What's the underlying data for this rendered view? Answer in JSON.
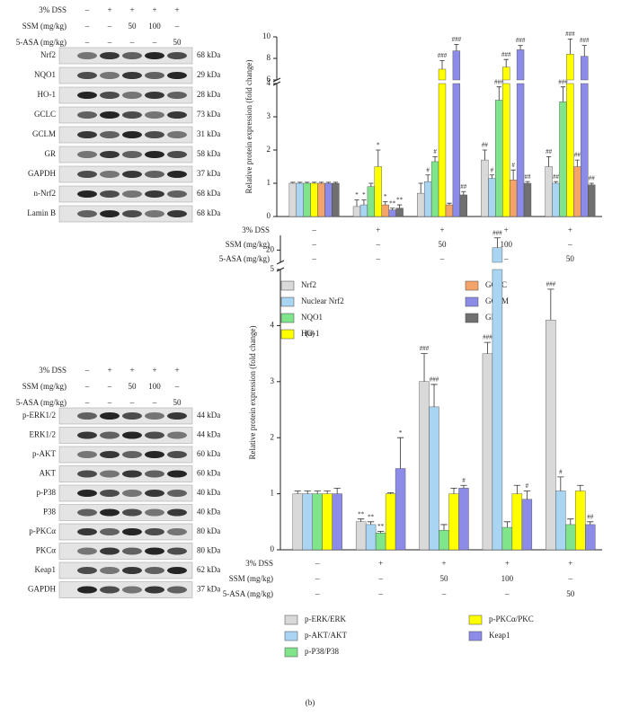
{
  "blots": [
    {
      "header_rows": [
        {
          "label": "3% DSS",
          "values": [
            "–",
            "+",
            "+",
            "+",
            "+"
          ]
        },
        {
          "label": "SSM (mg/kg)",
          "values": [
            "–",
            "–",
            "50",
            "100",
            "–"
          ]
        },
        {
          "label": "5-ASA (mg/kg)",
          "values": [
            "–",
            "–",
            "–",
            "–",
            "50"
          ]
        }
      ],
      "rows": [
        {
          "name": "Nrf2",
          "size": "68 kDa"
        },
        {
          "name": "NQO1",
          "size": "29 kDa"
        },
        {
          "name": "HO-1",
          "size": "28 kDa"
        },
        {
          "name": "GCLC",
          "size": "73 kDa"
        },
        {
          "name": "GCLM",
          "size": "31 kDa"
        },
        {
          "name": "GR",
          "size": "58 kDa"
        },
        {
          "name": "GAPDH",
          "size": "37 kDa"
        },
        {
          "name": "n-Nrf2",
          "size": "68 kDa"
        },
        {
          "name": "Lamin B",
          "size": "68 kDa"
        }
      ]
    },
    {
      "header_rows": [
        {
          "label": "3% DSS",
          "values": [
            "–",
            "+",
            "+",
            "+",
            "+"
          ]
        },
        {
          "label": "SSM (mg/kg)",
          "values": [
            "–",
            "–",
            "50",
            "100",
            "–"
          ]
        },
        {
          "label": "5-ASA (mg/kg)",
          "values": [
            "–",
            "–",
            "–",
            "–",
            "50"
          ]
        }
      ],
      "rows": [
        {
          "name": "p-ERK1/2",
          "size": "44 kDa"
        },
        {
          "name": "ERK1/2",
          "size": "44 kDa"
        },
        {
          "name": "p-AKT",
          "size": "60 kDa"
        },
        {
          "name": "AKT",
          "size": "60 kDa"
        },
        {
          "name": "p-P38",
          "size": "40 kDa"
        },
        {
          "name": "P38",
          "size": "40 kDa"
        },
        {
          "name": "p-PKCα",
          "size": "80 kDa"
        },
        {
          "name": "PKCα",
          "size": "80 kDa"
        },
        {
          "name": "Keap1",
          "size": "62 kDa"
        },
        {
          "name": "GAPDH",
          "size": "37 kDa"
        }
      ]
    }
  ],
  "chart_data": [
    {
      "type": "bar",
      "ylabel": "Relative protein expression (fold change)",
      "caption": "(a)",
      "ylim": [
        0,
        10
      ],
      "ybreak": [
        4,
        6
      ],
      "yticks": [
        0,
        1,
        2,
        3,
        4,
        6,
        8,
        10
      ],
      "conditions": [
        {
          "label": "3% DSS",
          "values": [
            "–",
            "+",
            "+",
            "+",
            "+"
          ]
        },
        {
          "label": "SSM (mg/kg)",
          "values": [
            "–",
            "–",
            "50",
            "100",
            "–"
          ]
        },
        {
          "label": "5-ASA (mg/kg)",
          "values": [
            "–",
            "–",
            "–",
            "–",
            "50"
          ]
        }
      ],
      "series": [
        {
          "name": "Nrf2",
          "color": "#d9d9d9",
          "values": [
            1,
            0.3,
            0.7,
            1.7,
            1.5
          ],
          "errors": [
            0.03,
            0.2,
            0.3,
            0.3,
            0.3
          ],
          "annotations": [
            null,
            "*",
            null,
            "##",
            "##"
          ]
        },
        {
          "name": "Nuclear Nrf2",
          "color": "#a9d5f3",
          "values": [
            1,
            0.35,
            1.05,
            1.15,
            1.0
          ],
          "errors": [
            0.03,
            0.15,
            0.2,
            0.1,
            0.05
          ],
          "annotations": [
            null,
            "*",
            "#",
            "#",
            "##"
          ]
        },
        {
          "name": "NQO1",
          "color": "#80e58a",
          "values": [
            1,
            0.9,
            1.65,
            3.5,
            3.45
          ],
          "errors": [
            0.03,
            0.1,
            0.15,
            0.4,
            0.45
          ],
          "annotations": [
            null,
            null,
            "#",
            "###",
            "###"
          ]
        },
        {
          "name": "HO-1",
          "color": "#ffff00",
          "values": [
            1,
            1.5,
            7.0,
            7.2,
            8.4
          ],
          "errors": [
            0.03,
            0.5,
            0.8,
            0.7,
            1.4
          ],
          "annotations": [
            null,
            "*",
            "###",
            "###",
            "###"
          ]
        },
        {
          "name": "GCLC",
          "color": "#f4a46a",
          "values": [
            1,
            0.35,
            0.35,
            1.1,
            1.5
          ],
          "errors": [
            0.03,
            0.1,
            0.05,
            0.3,
            0.2
          ],
          "annotations": [
            null,
            "*",
            null,
            "#",
            "##"
          ]
        },
        {
          "name": "GCLM",
          "color": "#8c8ce8",
          "values": [
            1,
            0.2,
            8.7,
            8.8,
            8.2
          ],
          "errors": [
            0.03,
            0.05,
            0.6,
            0.4,
            1.0
          ],
          "annotations": [
            null,
            "**",
            "###",
            "###",
            "###"
          ]
        },
        {
          "name": "GR",
          "color": "#707070",
          "values": [
            1,
            0.25,
            0.65,
            1.0,
            0.95
          ],
          "errors": [
            0.03,
            0.1,
            0.1,
            0.05,
            0.05
          ],
          "annotations": [
            null,
            "**",
            "##",
            "##",
            "##"
          ]
        }
      ]
    },
    {
      "type": "bar",
      "ylabel": "Relative protein expression (fold change)",
      "caption": "(b)",
      "ylim": [
        0,
        26
      ],
      "ybreak": [
        5,
        15
      ],
      "yticks": [
        0,
        1,
        2,
        3,
        4,
        5,
        20
      ],
      "conditions": [
        {
          "label": "3% DSS",
          "values": [
            "–",
            "+",
            "+",
            "+",
            "+"
          ]
        },
        {
          "label": "SSM (mg/kg)",
          "values": [
            "–",
            "–",
            "50",
            "100",
            "–"
          ]
        },
        {
          "label": "5-ASA (mg/kg)",
          "values": [
            "–",
            "–",
            "–",
            "–",
            "50"
          ]
        }
      ],
      "series": [
        {
          "name": "p-ERK/ERK",
          "color": "#d9d9d9",
          "values": [
            1,
            0.5,
            3.0,
            3.5,
            4.1
          ],
          "errors": [
            0.05,
            0.05,
            0.5,
            0.2,
            0.55
          ],
          "annotations": [
            null,
            "**",
            "###",
            "###",
            "###"
          ]
        },
        {
          "name": "p-AKT/AKT",
          "color": "#a9d5f3",
          "values": [
            1,
            0.45,
            2.55,
            21,
            1.05
          ],
          "errors": [
            0.05,
            0.05,
            0.4,
            4,
            0.25
          ],
          "annotations": [
            null,
            "**",
            "###",
            "###",
            "#"
          ]
        },
        {
          "name": "p-P38/P38",
          "color": "#80e58a",
          "values": [
            1,
            0.3,
            0.35,
            0.4,
            0.45
          ],
          "errors": [
            0.05,
            0.03,
            0.1,
            0.1,
            0.1
          ],
          "annotations": [
            null,
            "**",
            null,
            null,
            null
          ]
        },
        {
          "name": "p-PKCα/PKC",
          "color": "#ffff00",
          "values": [
            1,
            1.0,
            1.0,
            1.0,
            1.05
          ],
          "errors": [
            0.05,
            0.02,
            0.1,
            0.15,
            0.1
          ],
          "annotations": [
            null,
            null,
            null,
            null,
            null
          ]
        },
        {
          "name": "Keap1",
          "color": "#8c8ce8",
          "values": [
            1,
            1.45,
            1.1,
            0.9,
            0.45
          ],
          "errors": [
            0.1,
            0.55,
            0.05,
            0.15,
            0.05
          ],
          "annotations": [
            null,
            "*",
            "#",
            "#",
            "##"
          ]
        }
      ]
    }
  ]
}
